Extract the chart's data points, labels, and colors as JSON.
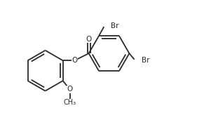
{
  "background_color": "#ffffff",
  "line_color": "#2a2a2a",
  "line_width": 1.3,
  "font_size": 7.5,
  "fig_width": 2.91,
  "fig_height": 1.91,
  "dpi": 100,
  "xlim": [
    0,
    10
  ],
  "ylim": [
    0,
    6.56
  ]
}
